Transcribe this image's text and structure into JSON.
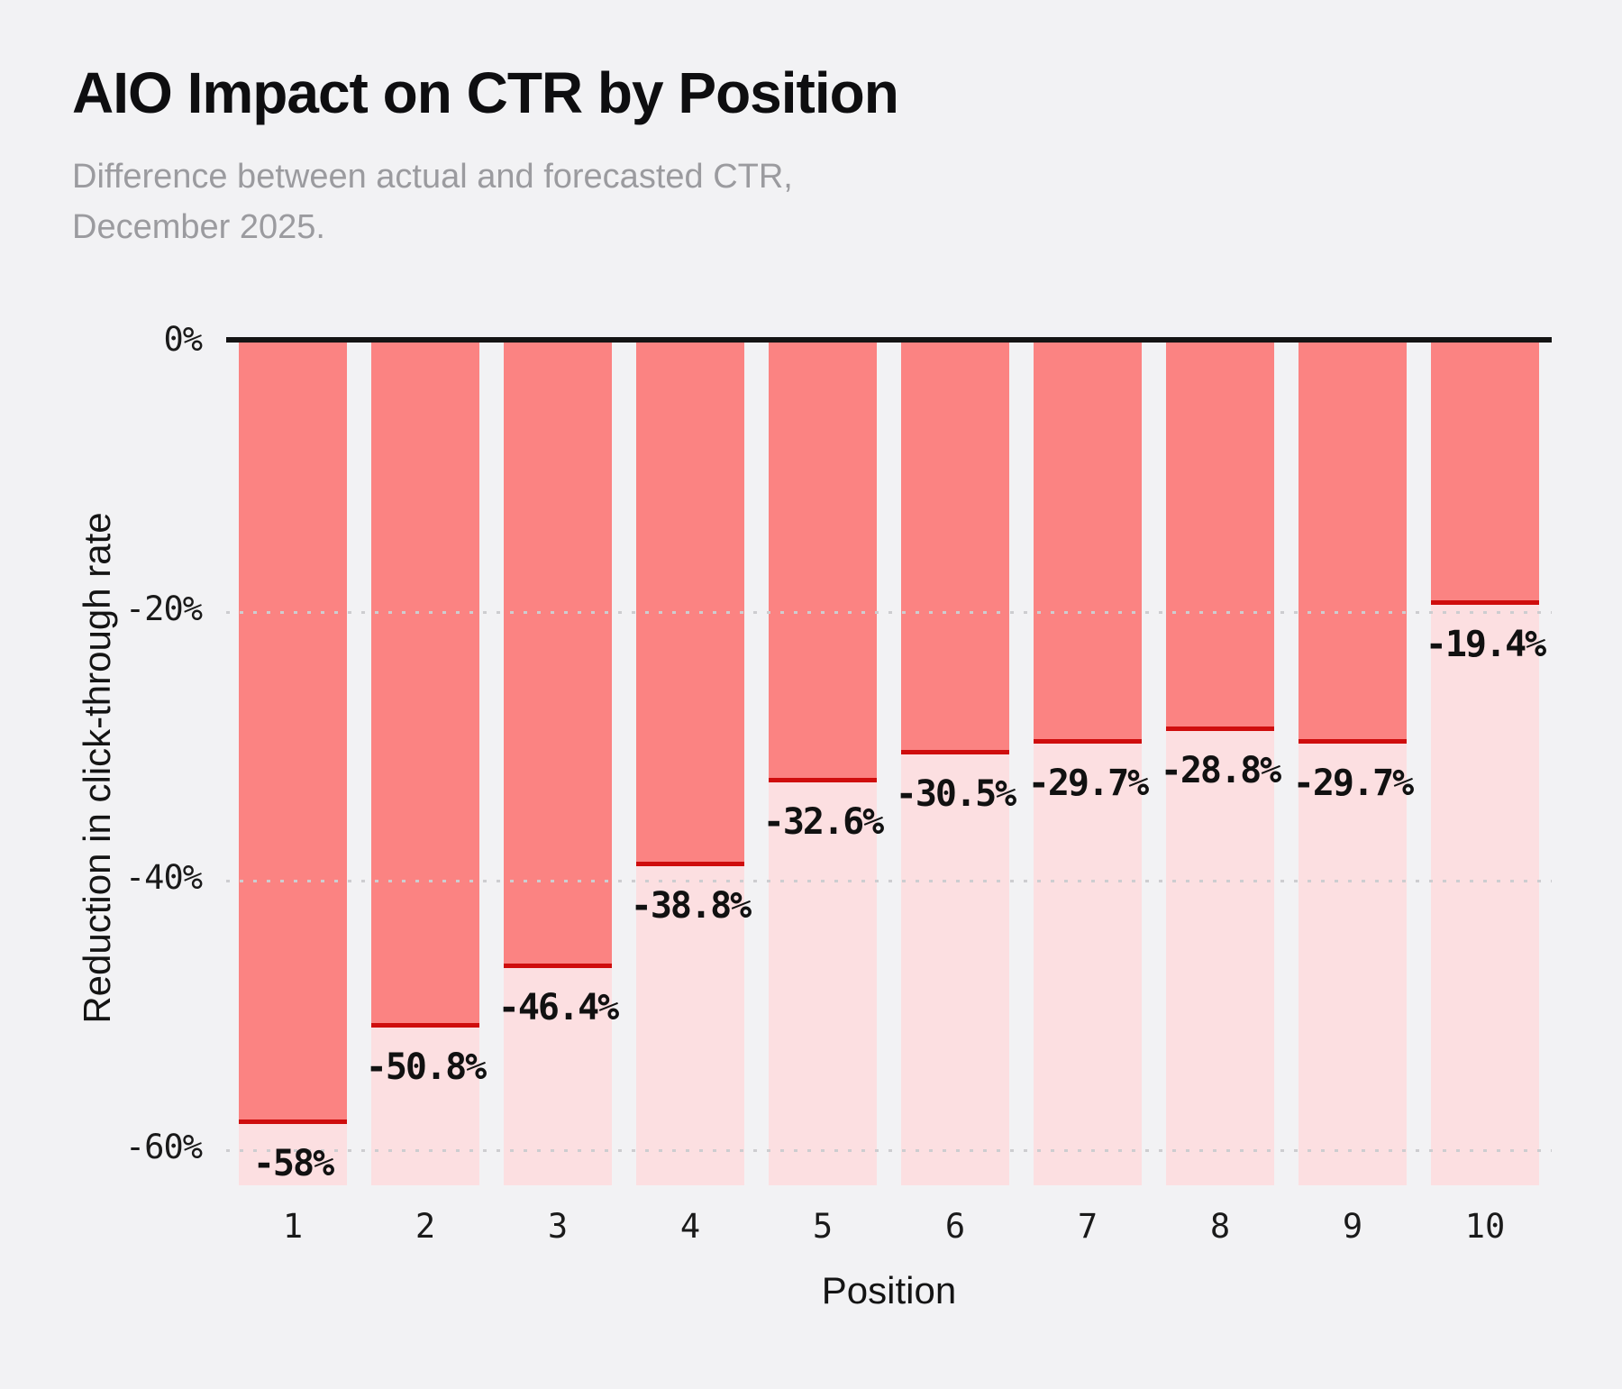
{
  "header": {
    "title": "AIO Impact on CTR by Position",
    "subtitle": "Difference between actual and forecasted CTR,\nDecember 2025."
  },
  "chart_data": {
    "type": "bar",
    "orientation": "vertical-negative",
    "title": "AIO Impact on CTR by Position",
    "subtitle": "Difference between actual and forecasted CTR, December 2025.",
    "xlabel": "Position",
    "ylabel": "Reduction in click-through rate",
    "categories": [
      "1",
      "2",
      "3",
      "4",
      "5",
      "6",
      "7",
      "8",
      "9",
      "10"
    ],
    "values": [
      -58,
      -50.8,
      -46.4,
      -38.8,
      -32.6,
      -30.5,
      -29.7,
      -28.8,
      -29.7,
      -19.4
    ],
    "value_labels": [
      "-58%",
      "-50.8%",
      "-46.4%",
      "-38.8%",
      "-32.6%",
      "-30.5%",
      "-29.7%",
      "-28.8%",
      "-29.7%",
      "-19.4%"
    ],
    "ylim": [
      -62.6,
      0
    ],
    "yticks": [
      {
        "value": 0,
        "label": "0%"
      },
      {
        "value": -20,
        "label": "-20%"
      },
      {
        "value": -40,
        "label": "-40%"
      },
      {
        "value": -60,
        "label": "-60%"
      }
    ],
    "grid": "horizontal-dotted",
    "legend": "none",
    "notes": "Each bar shows full-depth light band with darker overlay from 0 down to the value; dark red rule marks the value"
  },
  "colors": {
    "background": "#f2f2f4",
    "title_text": "#0e0e10",
    "subtitle_text": "#9b9b9f",
    "bar_actual": "#fb8382",
    "bar_background": "#fcdfe1",
    "value_line": "#cf0d0d",
    "zero_line": "#141414",
    "gridline": "#cdcdd0"
  }
}
